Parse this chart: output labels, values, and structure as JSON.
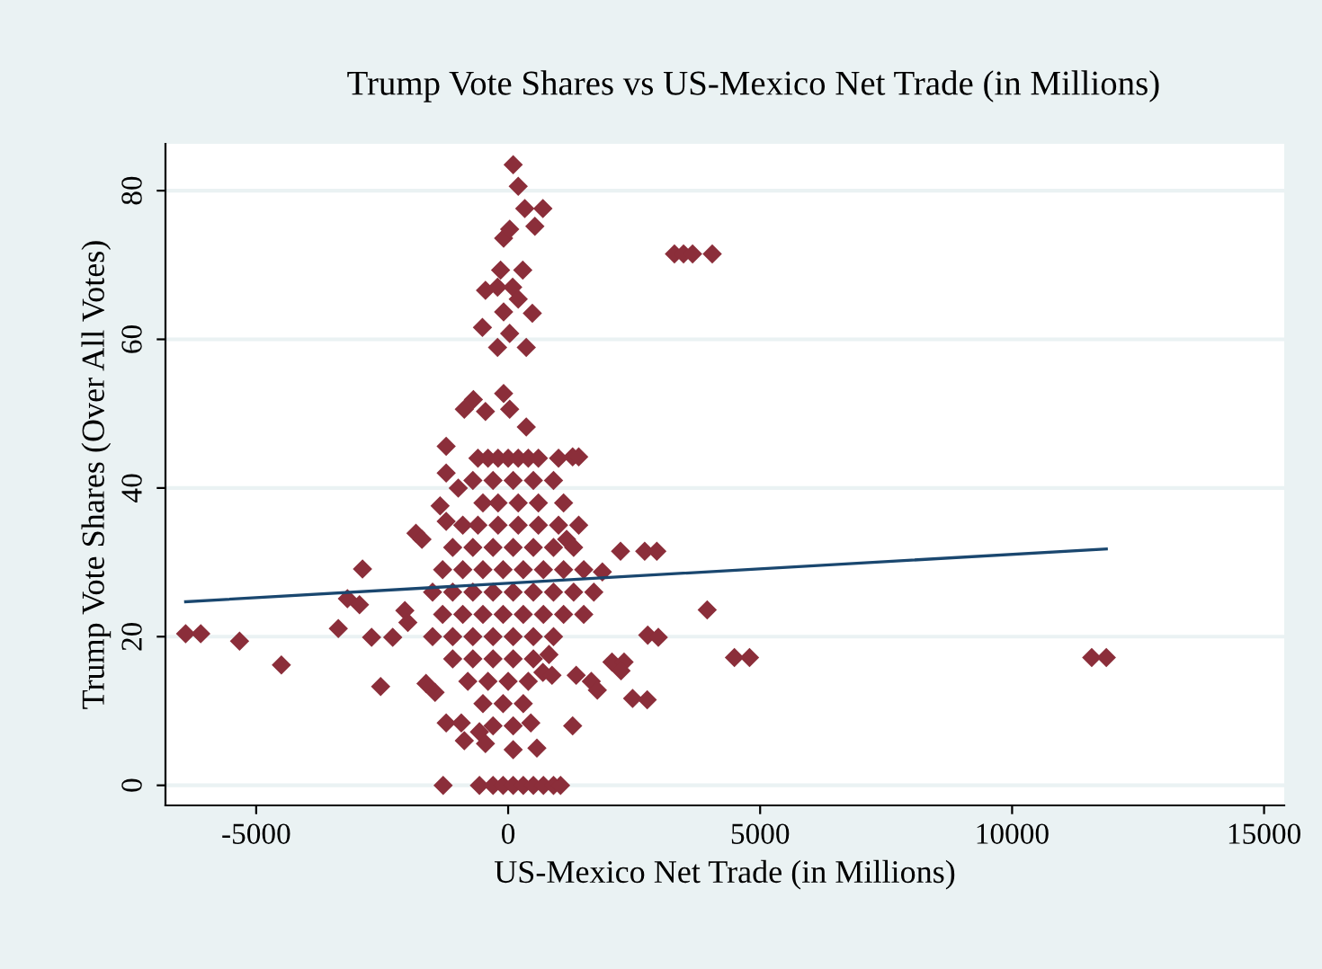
{
  "chart_data": {
    "type": "scatter",
    "title": "Trump Vote Shares vs US-Mexico Net Trade (in Millions)",
    "xlabel": "US-Mexico Net Trade (in Millions)",
    "ylabel": "Trump Vote Shares (Over All Votes)",
    "xlim": [
      -6800,
      15400
    ],
    "xticks": [
      -5000,
      0,
      5000,
      10000,
      15000
    ],
    "ylim": [
      -2.7,
      86.3
    ],
    "yticks": [
      0,
      20,
      40,
      60,
      80
    ],
    "grid": "y",
    "legend": false,
    "series": [
      {
        "color": "#8b2e3a",
        "marker": "diamond",
        "x": [
          100,
          200,
          330,
          690,
          530,
          -90,
          30,
          -150,
          290,
          -450,
          -210,
          90,
          200,
          -90,
          480,
          -510,
          30,
          -210,
          360,
          -90,
          -870,
          -690,
          -450,
          30,
          360,
          -1230,
          1280,
          1400,
          -1230,
          -990,
          -1350,
          -1230,
          -1830,
          -1710,
          1160,
          2230,
          2710,
          2950,
          1870,
          -2890,
          -3190,
          -2950,
          -3370,
          -2710,
          -2290,
          -2050,
          -1990,
          -6400,
          -6100,
          -5330,
          -4500,
          -2530,
          -1630,
          -1450,
          -1230,
          -930,
          -870,
          -570,
          -450,
          100,
          570,
          450,
          1280,
          690,
          870,
          810,
          1350,
          1650,
          1770,
          2060,
          2300,
          2240,
          2470,
          2770,
          -1290,
          -570,
          -300,
          -100,
          100,
          300,
          500,
          700,
          900,
          1040,
          3300,
          3480,
          3660,
          4050,
          3950,
          2980,
          4490,
          4790,
          11580,
          11870,
          2760,
          -600,
          -400,
          -200,
          0,
          200,
          400,
          600,
          1000,
          -700,
          -300,
          100,
          500,
          900,
          -500,
          -200,
          200,
          600,
          1100,
          -900,
          -600,
          -200,
          200,
          600,
          1000,
          1400,
          -1100,
          -700,
          -300,
          100,
          500,
          900,
          1300,
          -1300,
          -900,
          -500,
          -100,
          300,
          700,
          1100,
          1500,
          -1500,
          -1100,
          -700,
          -300,
          100,
          500,
          900,
          1300,
          1700,
          -1300,
          -900,
          -500,
          -100,
          300,
          700,
          1100,
          1500,
          -1500,
          -1100,
          -700,
          -300,
          100,
          500,
          900,
          -1100,
          -700,
          -300,
          100,
          500,
          -800,
          -400,
          0,
          400,
          -500,
          -100,
          300,
          -300,
          100
        ],
        "values": [
          83.5,
          80.6,
          77.6,
          77.6,
          75.2,
          73.6,
          74.8,
          69.3,
          69.3,
          66.6,
          67,
          67,
          65.4,
          63.7,
          63.5,
          61.6,
          60.8,
          58.9,
          58.9,
          52.7,
          50.6,
          51.9,
          50.3,
          50.6,
          48.2,
          45.6,
          44.2,
          44.2,
          42,
          40,
          37.6,
          35.5,
          33.9,
          33.1,
          33.1,
          31.5,
          31.5,
          31.5,
          28.7,
          29.1,
          25.1,
          24.3,
          21.1,
          19.9,
          19.9,
          23.5,
          21.9,
          20.4,
          20.4,
          19.4,
          16.2,
          13.3,
          13.7,
          12.5,
          8.4,
          8.4,
          6,
          7.2,
          5.6,
          4.8,
          5,
          8.4,
          8,
          15.2,
          14.8,
          17.6,
          14.8,
          14,
          12.8,
          16.6,
          16.6,
          15.4,
          11.7,
          20.2,
          0,
          0,
          0,
          0,
          0,
          0,
          0,
          0,
          0,
          0,
          71.5,
          71.5,
          71.5,
          71.5,
          23.6,
          19.9,
          17.2,
          17.2,
          17.2,
          17.2,
          11.5,
          44,
          44,
          44,
          44,
          44,
          44,
          44,
          44,
          41,
          41,
          41,
          41,
          41,
          38,
          38,
          38,
          38,
          38,
          35,
          35,
          35,
          35,
          35,
          35,
          35,
          32,
          32,
          32,
          32,
          32,
          32,
          32,
          29,
          29,
          29,
          29,
          29,
          29,
          29,
          29,
          26,
          26,
          26,
          26,
          26,
          26,
          26,
          26,
          26,
          23,
          23,
          23,
          23,
          23,
          23,
          23,
          23,
          20,
          20,
          20,
          20,
          20,
          20,
          20,
          17,
          17,
          17,
          17,
          17,
          14,
          14,
          14,
          14,
          11,
          11,
          11,
          8,
          8
        ]
      },
      {
        "type": "line",
        "color": "#1a476f",
        "line_style": "solid",
        "x": [
          -6400,
          11870
        ],
        "values": [
          24.7,
          31.8
        ]
      }
    ]
  }
}
